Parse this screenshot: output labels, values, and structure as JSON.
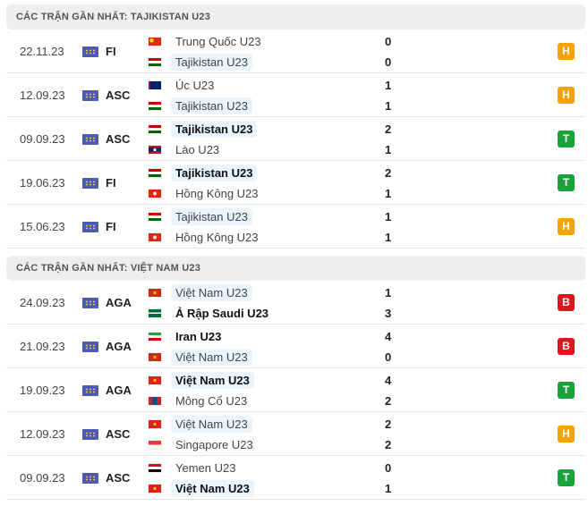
{
  "colors": {
    "H": "#f4a300",
    "T": "#1aa33a",
    "B": "#e0141e",
    "highlight": "#eaf4ff"
  },
  "sections": [
    {
      "title": "CÁC TRẬN GẦN NHẤT: TAJIKISTAN U23",
      "matches": [
        {
          "date": "22.11.23",
          "competition": "FI",
          "home": {
            "name": "Trung Quốc U23",
            "flag": "china-flag"
          },
          "away": {
            "name": "Tajikistan U23",
            "flag": "tajikistan-flag"
          },
          "home_score": "0",
          "away_score": "0",
          "highlight": "away",
          "winner": null,
          "result": "H"
        },
        {
          "date": "12.09.23",
          "competition": "ASC",
          "home": {
            "name": "Úc U23",
            "flag": "australia-flag"
          },
          "away": {
            "name": "Tajikistan U23",
            "flag": "tajikistan-flag"
          },
          "home_score": "1",
          "away_score": "1",
          "highlight": "away",
          "winner": null,
          "result": "H"
        },
        {
          "date": "09.09.23",
          "competition": "ASC",
          "home": {
            "name": "Tajikistan U23",
            "flag": "tajikistan-flag"
          },
          "away": {
            "name": "Lào U23",
            "flag": "laos-flag"
          },
          "home_score": "2",
          "away_score": "1",
          "highlight": "home",
          "winner": "home",
          "result": "T"
        },
        {
          "date": "19.06.23",
          "competition": "FI",
          "home": {
            "name": "Tajikistan U23",
            "flag": "tajikistan-flag"
          },
          "away": {
            "name": "Hồng Kông U23",
            "flag": "hongkong-flag"
          },
          "home_score": "2",
          "away_score": "1",
          "highlight": "home",
          "winner": "home",
          "result": "T"
        },
        {
          "date": "15.06.23",
          "competition": "FI",
          "home": {
            "name": "Tajikistan U23",
            "flag": "tajikistan-flag"
          },
          "away": {
            "name": "Hồng Kông U23",
            "flag": "hongkong-flag"
          },
          "home_score": "1",
          "away_score": "1",
          "highlight": "home",
          "winner": null,
          "result": "H"
        }
      ]
    },
    {
      "title": "CÁC TRẬN GẦN NHẤT: VIỆT NAM U23",
      "matches": [
        {
          "date": "24.09.23",
          "competition": "AGA",
          "home": {
            "name": "Việt Nam U23",
            "flag": "vietnam-flag"
          },
          "away": {
            "name": "Ả Rập Saudi U23",
            "flag": "saudi-flag"
          },
          "home_score": "1",
          "away_score": "3",
          "highlight": "home",
          "winner": "away",
          "result": "B"
        },
        {
          "date": "21.09.23",
          "competition": "AGA",
          "home": {
            "name": "Iran U23",
            "flag": "iran-flag"
          },
          "away": {
            "name": "Việt Nam U23",
            "flag": "vietnam-flag"
          },
          "home_score": "4",
          "away_score": "0",
          "highlight": "away",
          "winner": "home",
          "result": "B"
        },
        {
          "date": "19.09.23",
          "competition": "AGA",
          "home": {
            "name": "Việt Nam U23",
            "flag": "vietnam-flag"
          },
          "away": {
            "name": "Mông Cổ U23",
            "flag": "mongolia-flag"
          },
          "home_score": "4",
          "away_score": "2",
          "highlight": "home",
          "winner": "home",
          "result": "T"
        },
        {
          "date": "12.09.23",
          "competition": "ASC",
          "home": {
            "name": "Việt Nam U23",
            "flag": "vietnam-flag"
          },
          "away": {
            "name": "Singapore U23",
            "flag": "singapore-flag"
          },
          "home_score": "2",
          "away_score": "2",
          "highlight": "home",
          "winner": null,
          "result": "H"
        },
        {
          "date": "09.09.23",
          "competition": "ASC",
          "home": {
            "name": "Yemen U23",
            "flag": "yemen-flag"
          },
          "away": {
            "name": "Việt Nam U23",
            "flag": "vietnam-flag"
          },
          "home_score": "0",
          "away_score": "1",
          "highlight": "away",
          "winner": "away",
          "result": "T"
        }
      ]
    }
  ]
}
